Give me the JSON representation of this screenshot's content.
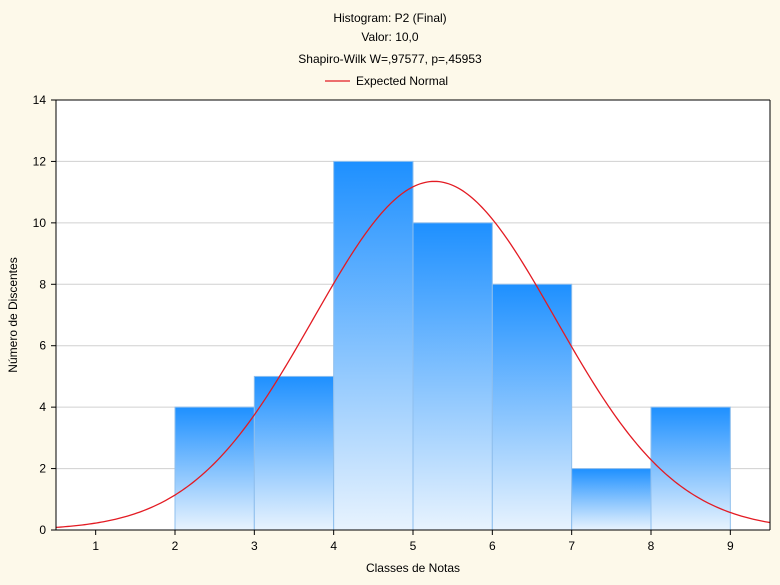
{
  "chart_data": {
    "type": "bar",
    "title": "Histogram: P2 (Final)",
    "subtitle_lines": [
      "Valor: 10,0",
      "Shapiro-Wilk W=,97577, p=,45953"
    ],
    "xlabel": "Classes de Notas",
    "ylabel": "Número de Discentes",
    "x_ticks": [
      1,
      2,
      3,
      4,
      5,
      6,
      7,
      8,
      9
    ],
    "y_ticks": [
      0,
      2,
      4,
      6,
      8,
      10,
      12,
      14
    ],
    "xlim": [
      0.5,
      9.5
    ],
    "ylim": [
      0,
      14
    ],
    "grid": true,
    "legend_position": "top",
    "bins": [
      {
        "from": 2,
        "to": 3,
        "value": 4
      },
      {
        "from": 3,
        "to": 4,
        "value": 5
      },
      {
        "from": 4,
        "to": 5,
        "value": 12
      },
      {
        "from": 5,
        "to": 6,
        "value": 10
      },
      {
        "from": 6,
        "to": 7,
        "value": 8
      },
      {
        "from": 7,
        "to": 8,
        "value": 2
      },
      {
        "from": 8,
        "to": 9,
        "value": 4
      }
    ],
    "series": [
      {
        "name": "Expected Normal",
        "type": "line",
        "mean": 5.27,
        "sd": 1.525,
        "peak": 11.35
      }
    ],
    "colors": {
      "bar_top": "#1e90ff",
      "bar_bottom": "#e8f3fe",
      "bar_edge": "#8fbfee",
      "curve": "#e31b23",
      "grid": "#d0d0d0",
      "plot_bg": "#ffffff",
      "page_bg": "#fdf9ea"
    }
  }
}
